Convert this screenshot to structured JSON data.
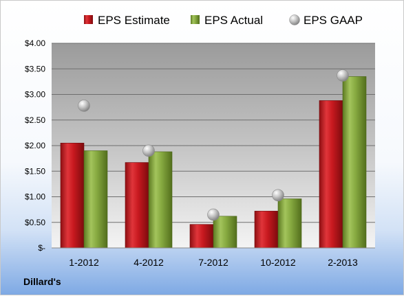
{
  "chart_data": {
    "type": "bar",
    "categories": [
      "1-2012",
      "4-2012",
      "7-2012",
      "10-2012",
      "2-2013"
    ],
    "series": [
      {
        "name": "EPS Estimate",
        "kind": "bar",
        "color": "#c0181e",
        "values": [
          2.05,
          1.67,
          0.46,
          0.72,
          2.88
        ]
      },
      {
        "name": "EPS Actual",
        "kind": "bar",
        "color": "#7fa03a",
        "values": [
          1.9,
          1.88,
          0.62,
          0.96,
          3.35
        ]
      },
      {
        "name": "EPS GAAP",
        "kind": "marker",
        "color": "#b8b8b8",
        "values": [
          2.78,
          1.9,
          0.65,
          1.03,
          3.37
        ]
      }
    ],
    "ylim": [
      0,
      4
    ],
    "yticks": [
      0,
      0.5,
      1,
      1.5,
      2,
      2.5,
      3,
      3.5,
      4
    ],
    "ytick_labels": [
      "$-",
      "$0.50",
      "$1.00",
      "$1.50",
      "$2.00",
      "$2.50",
      "$3.00",
      "$3.50",
      "$4.00"
    ],
    "grid": true,
    "legend": "top"
  },
  "footer": {
    "company": "Dillard's"
  }
}
